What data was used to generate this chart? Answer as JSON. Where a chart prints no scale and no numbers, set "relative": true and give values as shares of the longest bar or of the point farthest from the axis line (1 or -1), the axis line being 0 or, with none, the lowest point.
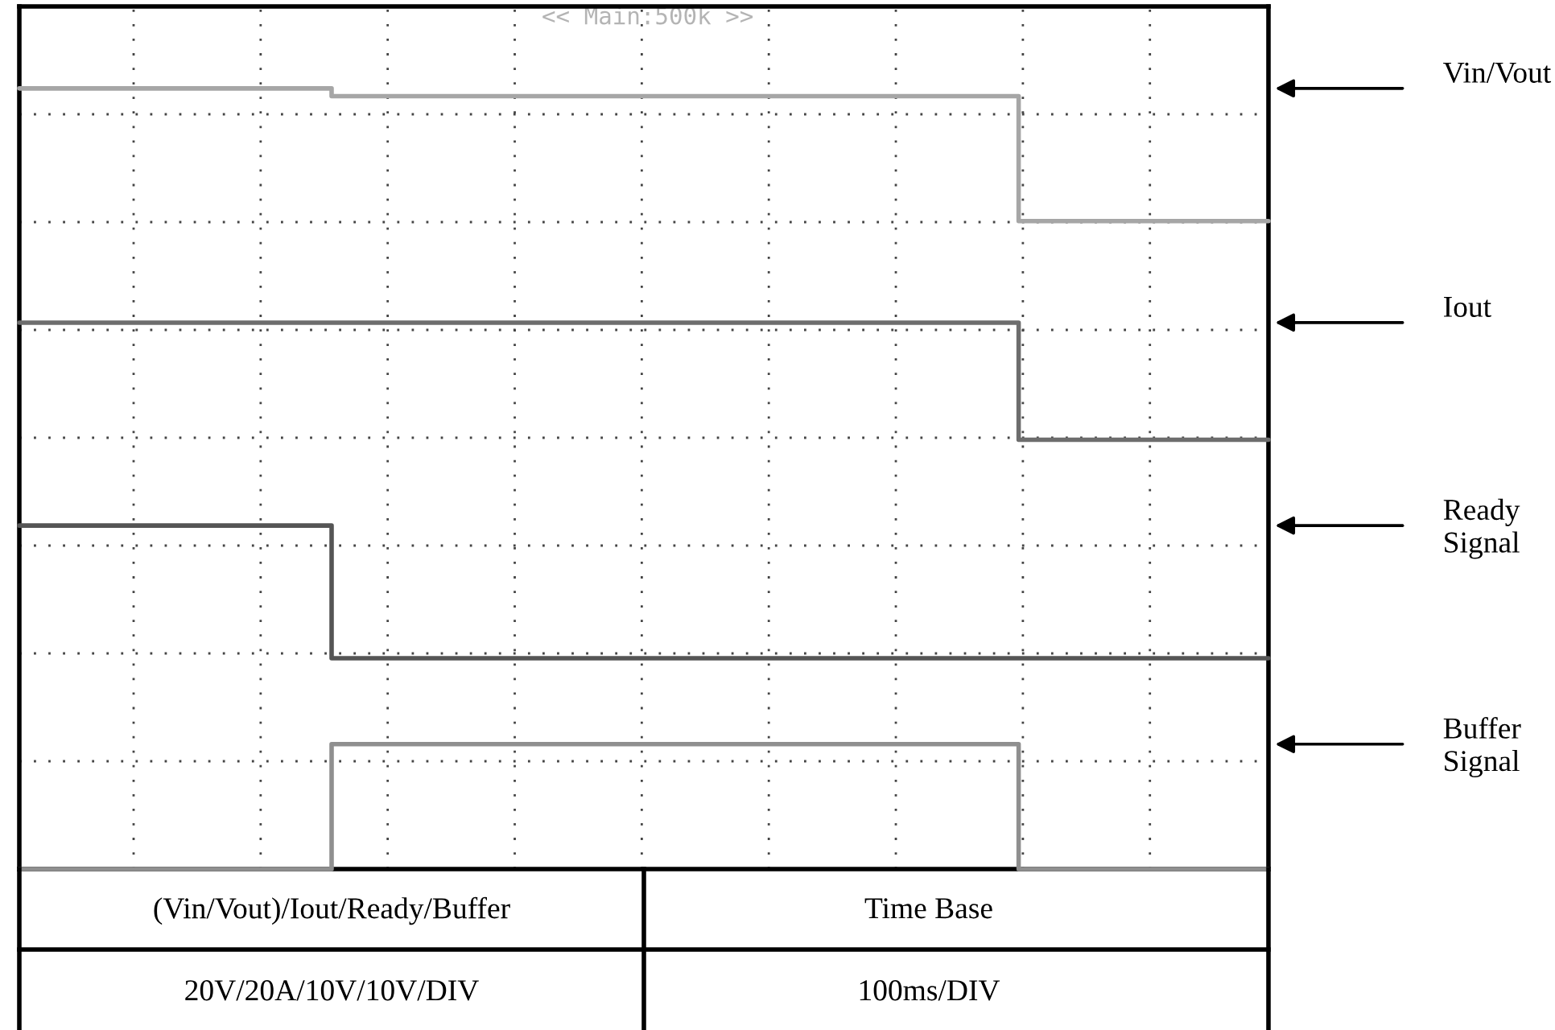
{
  "chart_data": {
    "type": "step",
    "relative": true,
    "grid": true,
    "categories": [
      null,
      null,
      null,
      null,
      null,
      null,
      null,
      null,
      null,
      null,
      null,
      null,
      null,
      null,
      null,
      null,
      null,
      null,
      null,
      null,
      null
    ],
    "series": [
      {
        "name": "Vin/Vout",
        "color": "#a6a6a6",
        "values": [
          1,
          1,
          1,
          1,
          1,
          0.99,
          0.99,
          0.99,
          0.99,
          0.99,
          0.99,
          0.99,
          0.99,
          0.99,
          0.99,
          0.99,
          0.83,
          0.83,
          0.83,
          0.83,
          0.83
        ]
      },
      {
        "name": "Iout",
        "color": "#6d6d6d",
        "values": [
          0.7,
          0.7,
          0.7,
          0.7,
          0.7,
          0.7,
          0.7,
          0.7,
          0.7,
          0.7,
          0.7,
          0.7,
          0.7,
          0.7,
          0.7,
          0.7,
          0.55,
          0.55,
          0.55,
          0.55,
          0.55
        ]
      },
      {
        "name": "Ready\nSignal",
        "color": "#555555",
        "values": [
          0.44,
          0.44,
          0.44,
          0.44,
          0.44,
          0.27,
          0.27,
          0.27,
          0.27,
          0.27,
          0.27,
          0.27,
          0.27,
          0.27,
          0.27,
          0.27,
          0.27,
          0.27,
          0.27,
          0.27,
          0.27
        ]
      },
      {
        "name": "Buffer\nSignal",
        "color": "#8f8f8f",
        "values": [
          0,
          0,
          0,
          0,
          0,
          0.16,
          0.16,
          0.16,
          0.16,
          0.16,
          0.16,
          0.16,
          0.16,
          0.16,
          0.16,
          0.16,
          0,
          0,
          0,
          0,
          0
        ]
      }
    ],
    "annotations": [
      "<< Main:500k >>",
      "(Vin/Vout)/Iout/Ready/Buffer",
      "Time Base",
      "20V/20A/10V/10V/DIV",
      "100ms/DIV"
    ]
  }
}
